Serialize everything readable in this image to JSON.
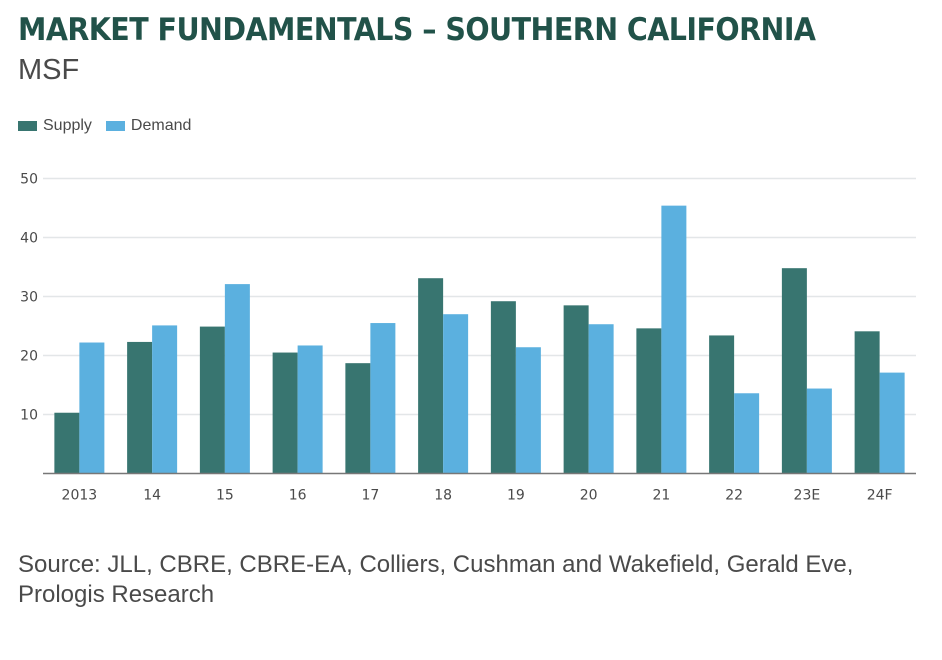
{
  "header": {
    "title": "MARKET FUNDAMENTALS – SOUTHERN CALIFORNIA",
    "subtitle": "MSF"
  },
  "legend": [
    {
      "label": "Supply",
      "color": "#387570"
    },
    {
      "label": "Demand",
      "color": "#5bb0df"
    }
  ],
  "chart_data": {
    "type": "bar",
    "title": "MARKET FUNDAMENTALS – SOUTHERN CALIFORNIA",
    "ylabel": "MSF",
    "xlabel": "",
    "categories": [
      "2013",
      "14",
      "15",
      "16",
      "17",
      "18",
      "19",
      "20",
      "21",
      "22",
      "23E",
      "24F"
    ],
    "series": [
      {
        "name": "Supply",
        "color": "#387570",
        "values": [
          10.3,
          22.3,
          24.9,
          20.5,
          18.7,
          33.1,
          29.2,
          28.5,
          24.6,
          23.4,
          34.8,
          24.1
        ]
      },
      {
        "name": "Demand",
        "color": "#5bb0df",
        "values": [
          22.2,
          25.1,
          32.1,
          21.7,
          25.5,
          27.0,
          21.4,
          25.3,
          45.4,
          13.6,
          14.4,
          17.1
        ]
      }
    ],
    "ylim": [
      0,
      50
    ],
    "yticks": [
      10,
      20,
      30,
      40,
      50
    ],
    "grid": true,
    "legend_position": "top-left"
  },
  "footer": {
    "source": "Source: JLL, CBRE, CBRE-EA, Colliers, Cushman and Wakefield, Gerald Eve, Prologis Research"
  }
}
